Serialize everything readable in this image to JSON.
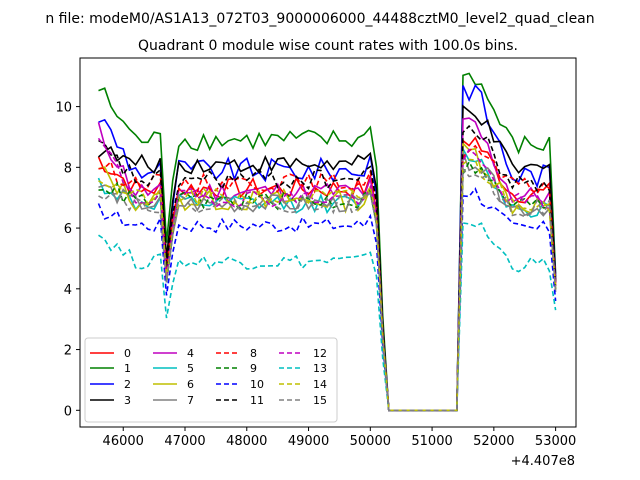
{
  "chart_data": {
    "type": "line",
    "suptitle": "n file: modeM0/AS1A13_072T03_9000006000_44488cztM0_level2_quad_clean",
    "title": "Quadrant 0 module wise count rates with 100.0s bins.",
    "xlabel": "",
    "ylabel": "",
    "x_offset_label": "+4.407e8",
    "xlim": [
      45300,
      53330
    ],
    "ylim": [
      -0.55,
      11.6
    ],
    "xticks": [
      46000,
      47000,
      48000,
      49000,
      50000,
      51000,
      52000,
      53000
    ],
    "yticks": [
      0,
      2,
      4,
      6,
      8,
      10
    ],
    "grid": false,
    "legend_placement": "lower-left",
    "legend_columns": 4,
    "x_range": [
      45600,
      53000
    ],
    "series_shape": {
      "segment1_end": 50000,
      "gap_start": 50300,
      "gap_end": 51400,
      "segment2_start": 51500,
      "dip_at": 46700
    },
    "series": [
      {
        "name": "0",
        "color": "#ff0000",
        "style": "solid",
        "level": 7.3,
        "start": 8.3,
        "peak2": 8.9,
        "end": 4.2,
        "noise": 0.35
      },
      {
        "name": "1",
        "color": "#008000",
        "style": "solid",
        "level": 8.9,
        "start": 10.6,
        "peak2": 11.0,
        "end": 4.5,
        "noise": 0.35
      },
      {
        "name": "2",
        "color": "#0000ff",
        "style": "solid",
        "level": 7.9,
        "start": 9.7,
        "peak2": 10.6,
        "end": 4.4,
        "noise": 0.4
      },
      {
        "name": "3",
        "color": "#000000",
        "style": "solid",
        "level": 8.1,
        "start": 8.6,
        "peak2": 9.9,
        "end": 4.3,
        "noise": 0.3
      },
      {
        "name": "4",
        "color": "#bf00bf",
        "style": "solid",
        "level": 7.2,
        "start": 9.2,
        "peak2": 9.4,
        "end": 4.2,
        "noise": 0.35
      },
      {
        "name": "5",
        "color": "#00bfbf",
        "style": "solid",
        "level": 6.8,
        "start": 7.5,
        "peak2": 8.4,
        "end": 4.0,
        "noise": 0.3
      },
      {
        "name": "6",
        "color": "#bfbf00",
        "style": "solid",
        "level": 6.9,
        "start": 7.9,
        "peak2": 8.5,
        "end": 4.0,
        "noise": 0.35
      },
      {
        "name": "7",
        "color": "#808080",
        "style": "solid",
        "level": 6.8,
        "start": 7.4,
        "peak2": 8.2,
        "end": 3.9,
        "noise": 0.3
      },
      {
        "name": "8",
        "color": "#ff0000",
        "style": "dashed",
        "level": 7.5,
        "start": 8.1,
        "peak2": 8.6,
        "end": 4.1,
        "noise": 0.3
      },
      {
        "name": "9",
        "color": "#008000",
        "style": "dashed",
        "level": 6.9,
        "start": 7.5,
        "peak2": 8.0,
        "end": 4.0,
        "noise": 0.3
      },
      {
        "name": "10",
        "color": "#0000ff",
        "style": "dashed",
        "level": 6.1,
        "start": 6.6,
        "peak2": 7.2,
        "end": 3.6,
        "noise": 0.25
      },
      {
        "name": "11",
        "color": "#000000",
        "style": "dashed",
        "level": 7.6,
        "start": 8.7,
        "peak2": 9.3,
        "end": 4.2,
        "noise": 0.35
      },
      {
        "name": "12",
        "color": "#bf00bf",
        "style": "dashed",
        "level": 7.0,
        "start": 8.9,
        "peak2": 8.3,
        "end": 4.1,
        "noise": 0.3
      },
      {
        "name": "13",
        "color": "#00bfbf",
        "style": "dashed",
        "level": 4.9,
        "start": 5.8,
        "peak2": 6.2,
        "end": 3.3,
        "noise": 0.25
      },
      {
        "name": "14",
        "color": "#bfbf00",
        "style": "dashed",
        "level": 7.0,
        "start": 7.7,
        "peak2": 8.1,
        "end": 4.0,
        "noise": 0.3
      },
      {
        "name": "15",
        "color": "#808080",
        "style": "dashed",
        "level": 6.8,
        "start": 7.3,
        "peak2": 7.9,
        "end": 3.9,
        "noise": 0.3
      }
    ]
  }
}
